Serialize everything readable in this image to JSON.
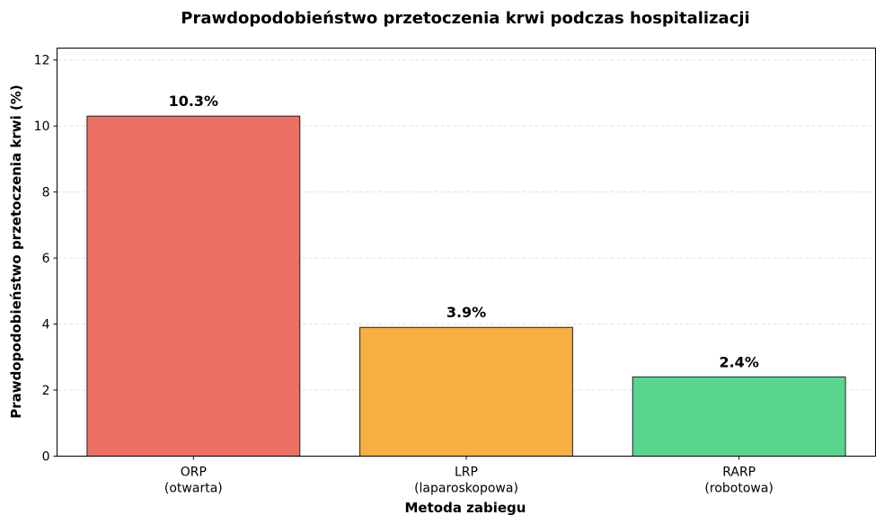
{
  "chart_data": {
    "type": "bar",
    "title": "Prawdopodobieństwo przetoczenia krwi podczas hospitalizacji",
    "xlabel": "Metoda zabiegu",
    "ylabel": "Prawdopodobieństwo przetoczenia krwi (%)",
    "categories": [
      [
        "ORP",
        "(otwarta)"
      ],
      [
        "LRP",
        "(laparoskopowa)"
      ],
      [
        "RARP",
        "(robotowa)"
      ]
    ],
    "values": [
      10.3,
      3.9,
      2.4
    ],
    "value_labels": [
      "10.3%",
      "3.9%",
      "2.4%"
    ],
    "colors": [
      "#EC7063",
      "#F5B041",
      "#58D68D"
    ],
    "ylim": [
      0,
      12.36
    ],
    "yticks": [
      0,
      2,
      4,
      6,
      8,
      10,
      12
    ],
    "ytick_labels": [
      "0",
      "2",
      "4",
      "6",
      "8",
      "10",
      "12"
    ],
    "grid": true,
    "grid_axis": "y"
  }
}
